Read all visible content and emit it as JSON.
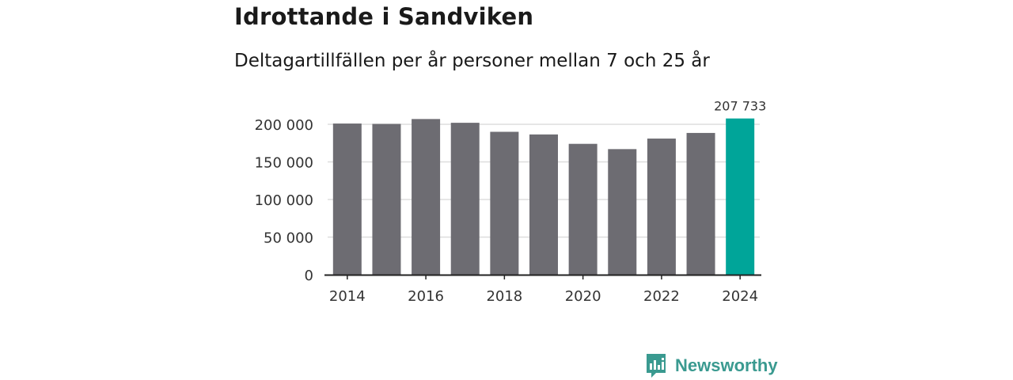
{
  "chart_data": {
    "type": "bar",
    "title": "Idrottande i Sandviken",
    "subtitle": "Deltagartillfällen per år personer mellan 7 och 25 år",
    "categories": [
      2014,
      2015,
      2016,
      2017,
      2018,
      2019,
      2020,
      2021,
      2022,
      2023,
      2024
    ],
    "values": [
      201000,
      200500,
      207000,
      202000,
      190000,
      186500,
      174000,
      167000,
      181000,
      188500,
      207733
    ],
    "ylim": [
      0,
      200000
    ],
    "yticks": [
      0,
      50000,
      100000,
      150000,
      200000
    ],
    "ytick_labels": [
      "0",
      "50 000",
      "100 000",
      "150 000",
      "200 000"
    ],
    "xticks": [
      2014,
      2016,
      2018,
      2020,
      2022,
      2024
    ],
    "xtick_labels": [
      "2014",
      "2016",
      "2018",
      "2020",
      "2022",
      "2024"
    ],
    "highlight_label": "207 733",
    "grid": true,
    "colors": {
      "bar": "#6d6c72",
      "highlight": "#00a599",
      "grid": "#dddddd",
      "axis": "#222222"
    }
  },
  "brand": {
    "name": "Newsworthy",
    "color": "#3a9a90"
  }
}
